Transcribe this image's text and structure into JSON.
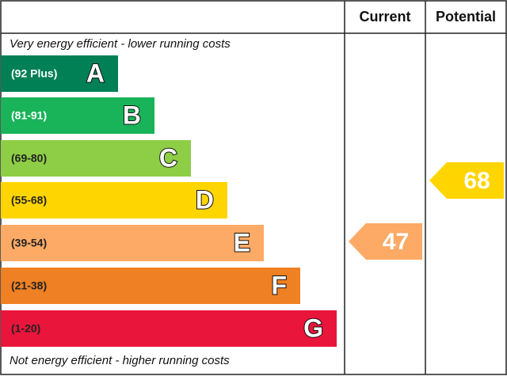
{
  "header": {
    "current": "Current",
    "potential": "Potential"
  },
  "top_note": "Very energy efficient - lower running costs",
  "bottom_note": "Not energy efficient - higher running costs",
  "bands": [
    {
      "range": "(92 Plus)",
      "letter": "A",
      "color": "#008054"
    },
    {
      "range": "(81-91)",
      "letter": "B",
      "color": "#19b459"
    },
    {
      "range": "(69-80)",
      "letter": "C",
      "color": "#8dce46"
    },
    {
      "range": "(55-68)",
      "letter": "D",
      "color": "#ffd500"
    },
    {
      "range": "(39-54)",
      "letter": "E",
      "color": "#fcaa65"
    },
    {
      "range": "(21-38)",
      "letter": "F",
      "color": "#ef8023"
    },
    {
      "range": "(1-20)",
      "letter": "G",
      "color": "#e9153b"
    }
  ],
  "current": {
    "value": "47",
    "color": "#fcaa65"
  },
  "potential": {
    "value": "68",
    "color": "#ffd500"
  }
}
